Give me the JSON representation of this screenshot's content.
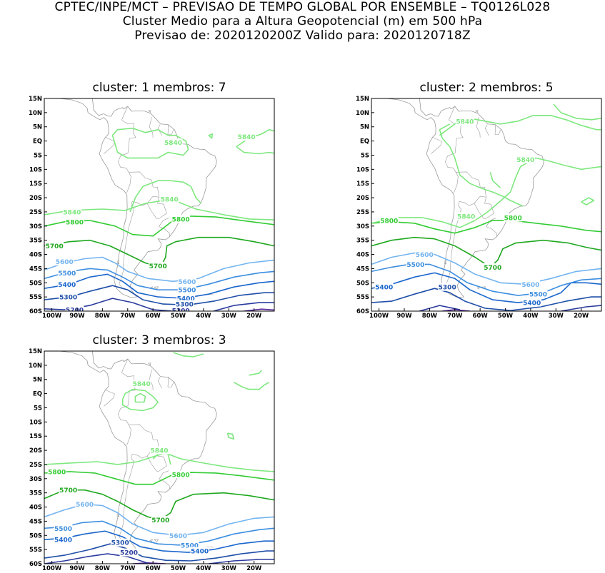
{
  "header": {
    "line1": "CPTEC/INPE/MCT – PREVISAO DE TEMPO GLOBAL POR ENSEMBLE – TQ0126L028",
    "line2": "Cluster Medio para a Altura Geopotencial (m) em 500 hPa",
    "line3": "Previsao de: 2020120200Z    Valido para: 2020120718Z"
  },
  "lat_labels": [
    "15N",
    "10N",
    "5N",
    "EQ",
    "5S",
    "10S",
    "15S",
    "20S",
    "25S",
    "30S",
    "35S",
    "40S",
    "45S",
    "50S",
    "55S",
    "60S"
  ],
  "lon_labels": [
    "100W",
    "90W",
    "80W",
    "70W",
    "60W",
    "50W",
    "40W",
    "30W",
    "20W"
  ],
  "colors": {
    "c5840": "#7ee87e",
    "c5800": "#33cc33",
    "c5700": "#1fa81f",
    "c5600": "#73b4f0",
    "c5500": "#3d8ee0",
    "c5400": "#1a66cc",
    "c5300": "#1f4fa8",
    "c5200": "#2a3a9e",
    "c5100": "#5b2a9e",
    "coast": "#9a9a9a"
  },
  "panels": [
    {
      "title": "cluster: 1   membros: 7",
      "labels": [
        {
          "text": "5840",
          "level": "5840",
          "lon": -52,
          "lat": -0.5
        },
        {
          "text": "5840",
          "level": "5840",
          "lon": -23,
          "lat": 1.5
        },
        {
          "text": "5840",
          "level": "5840",
          "lon": -53.5,
          "lat": -20.5
        },
        {
          "text": "5840",
          "level": "5840",
          "lon": -92,
          "lat": -25
        },
        {
          "text": "5800",
          "level": "5800",
          "lon": -91,
          "lat": -28.5
        },
        {
          "text": "5800",
          "level": "5800",
          "lon": -49,
          "lat": -27.5
        },
        {
          "text": "5700",
          "level": "5700",
          "lon": -99,
          "lat": -37
        },
        {
          "text": "5700",
          "level": "5700",
          "lon": -58,
          "lat": -44
        },
        {
          "text": "5600",
          "level": "5600",
          "lon": -95,
          "lat": -42.5
        },
        {
          "text": "5600",
          "level": "5600",
          "lon": -46.5,
          "lat": -49.5
        },
        {
          "text": "5500",
          "level": "5500",
          "lon": -94,
          "lat": -46.5
        },
        {
          "text": "5500",
          "level": "5500",
          "lon": -46.5,
          "lat": -52.5
        },
        {
          "text": "5400",
          "level": "5400",
          "lon": -94,
          "lat": -50.5
        },
        {
          "text": "5400",
          "level": "5400",
          "lon": -47,
          "lat": -55.5
        },
        {
          "text": "5300",
          "level": "5300",
          "lon": -93.5,
          "lat": -55
        },
        {
          "text": "5300",
          "level": "5300",
          "lon": -47.5,
          "lat": -57.5
        },
        {
          "text": "5200",
          "level": "5200",
          "lon": -91,
          "lat": -59.5
        },
        {
          "text": "5200",
          "level": "5200",
          "lon": -49,
          "lat": -59.8
        }
      ]
    },
    {
      "title": "cluster: 2   membros: 5",
      "labels": [
        {
          "text": "5840",
          "level": "5840",
          "lon": -66,
          "lat": 7
        },
        {
          "text": "5840",
          "level": "5840",
          "lon": -42,
          "lat": -6.5
        },
        {
          "text": "5840",
          "level": "5840",
          "lon": -65.5,
          "lat": -26.5
        },
        {
          "text": "5800",
          "level": "5800",
          "lon": -96,
          "lat": -28
        },
        {
          "text": "5800",
          "level": "5800",
          "lon": -47,
          "lat": -27
        },
        {
          "text": "5700",
          "level": "5700",
          "lon": -55,
          "lat": -44.5
        },
        {
          "text": "5600",
          "level": "5600",
          "lon": -82,
          "lat": -40
        },
        {
          "text": "5600",
          "level": "5600",
          "lon": -40,
          "lat": -50.5
        },
        {
          "text": "5500",
          "level": "5500",
          "lon": -85.5,
          "lat": -43.5
        },
        {
          "text": "5500",
          "level": "5500",
          "lon": -37,
          "lat": -54
        },
        {
          "text": "5400",
          "level": "5400",
          "lon": -98,
          "lat": -51.5
        },
        {
          "text": "5400",
          "level": "5400",
          "lon": -39.5,
          "lat": -57
        },
        {
          "text": "5300",
          "level": "5300",
          "lon": -73,
          "lat": -51.5
        }
      ]
    },
    {
      "title": "cluster: 3   membros: 3",
      "labels": [
        {
          "text": "5840",
          "level": "5840",
          "lon": -64.5,
          "lat": 3.5
        },
        {
          "text": "5840",
          "level": "5840",
          "lon": -57.5,
          "lat": -20
        },
        {
          "text": "5800",
          "level": "5800",
          "lon": -98,
          "lat": -27.5
        },
        {
          "text": "5800",
          "level": "5800",
          "lon": -49,
          "lat": -28.5
        },
        {
          "text": "5700",
          "level": "5700",
          "lon": -93.5,
          "lat": -34
        },
        {
          "text": "5700",
          "level": "5700",
          "lon": -57,
          "lat": -44.5
        },
        {
          "text": "5600",
          "level": "5600",
          "lon": -87,
          "lat": -39
        },
        {
          "text": "5600",
          "level": "5600",
          "lon": -50,
          "lat": -50
        },
        {
          "text": "5500",
          "level": "5500",
          "lon": -95.5,
          "lat": -47.5
        },
        {
          "text": "5500",
          "level": "5500",
          "lon": -45.5,
          "lat": -53.5
        },
        {
          "text": "5400",
          "level": "5400",
          "lon": -95.5,
          "lat": -51.5
        },
        {
          "text": "5400",
          "level": "5400",
          "lon": -41.5,
          "lat": -55.5
        },
        {
          "text": "5300",
          "level": "5300",
          "lon": -73,
          "lat": -52.5
        },
        {
          "text": "5200",
          "level": "5200",
          "lon": -69.5,
          "lat": -56
        }
      ]
    }
  ]
}
